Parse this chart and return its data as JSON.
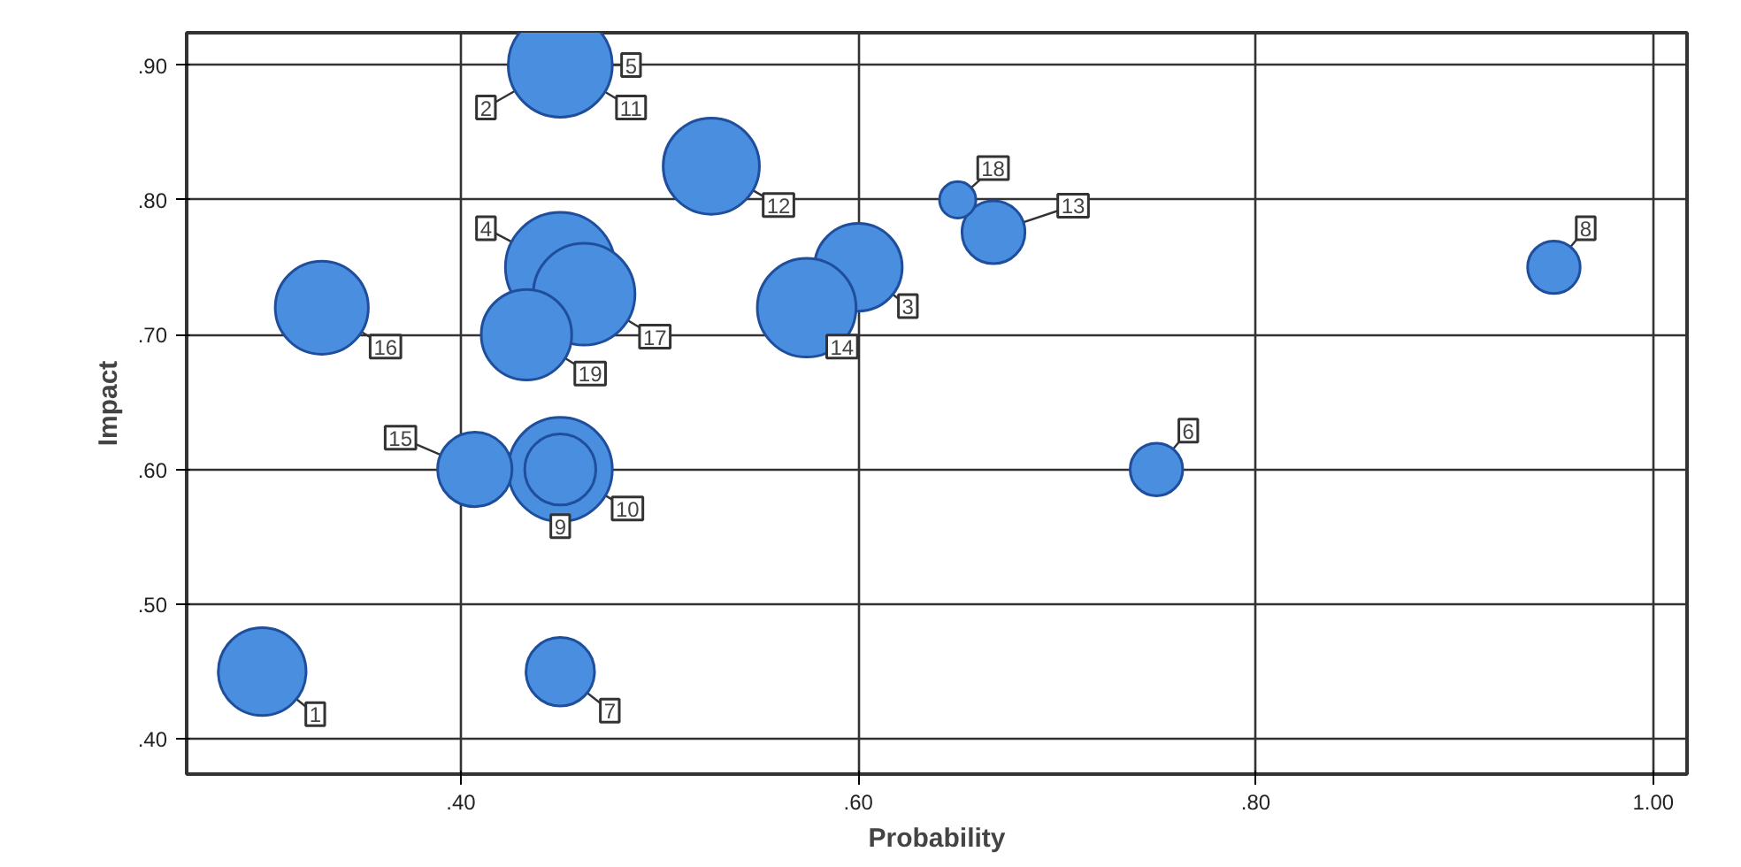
{
  "chart_data": {
    "type": "bubble",
    "xlabel": "Probability",
    "ylabel": "Impact",
    "xlim": [
      0.262,
      1.017
    ],
    "ylim": [
      0.374,
      0.924
    ],
    "xticks": [
      {
        "value": 0.4,
        "label": ".40"
      },
      {
        "value": 0.6,
        "label": ".60"
      },
      {
        "value": 0.8,
        "label": ".80"
      },
      {
        "value": 1.0,
        "label": "1.00"
      }
    ],
    "yticks": [
      {
        "value": 0.4,
        "label": ".40"
      },
      {
        "value": 0.5,
        "label": ".50"
      },
      {
        "value": 0.6,
        "label": ".60"
      },
      {
        "value": 0.7,
        "label": ".70"
      },
      {
        "value": 0.8,
        "label": ".80"
      },
      {
        "value": 0.9,
        "label": ".90"
      }
    ],
    "grid": true,
    "marker": "circle",
    "series": [
      {
        "color": "#4a8ee0",
        "x": [
          0.3,
          0.45,
          0.6,
          0.45,
          0.75,
          0.45,
          0.95,
          0.45,
          0.45,
          0.526,
          0.668,
          0.574,
          0.407,
          0.33,
          0.462,
          0.65,
          0.433
        ],
        "values": [
          0.45,
          0.9,
          0.75,
          0.75,
          0.6,
          0.45,
          0.75,
          0.6,
          0.6,
          0.825,
          0.776,
          0.72,
          0.6,
          0.72,
          0.73,
          0.8,
          0.7
        ],
        "sizes": [
          0.64,
          0.9,
          0.64,
          1,
          0.23,
          0.39,
          0.23,
          0.9,
          0.42,
          0.77,
          0.33,
          0.81,
          0.46,
          0.72,
          0.86,
          0.11,
          0.68
        ]
      }
    ],
    "annotations": [
      {
        "text": "1",
        "x": 0.3,
        "y": 0.45
      },
      {
        "text": "2",
        "x": 0.45,
        "y": 0.9
      },
      {
        "text": "3",
        "x": 0.6,
        "y": 0.75
      },
      {
        "text": "4",
        "x": 0.45,
        "y": 0.75
      },
      {
        "text": "5",
        "x": 0.45,
        "y": 0.9
      },
      {
        "text": "6",
        "x": 0.75,
        "y": 0.6
      },
      {
        "text": "7",
        "x": 0.45,
        "y": 0.45
      },
      {
        "text": "8",
        "x": 0.95,
        "y": 0.75
      },
      {
        "text": "9",
        "x": 0.45,
        "y": 0.6
      },
      {
        "text": "10",
        "x": 0.45,
        "y": 0.6
      },
      {
        "text": "11",
        "x": 0.45,
        "y": 0.9
      },
      {
        "text": "12",
        "x": 0.526,
        "y": 0.825
      },
      {
        "text": "13",
        "x": 0.668,
        "y": 0.776
      },
      {
        "text": "14",
        "x": 0.574,
        "y": 0.72
      },
      {
        "text": "15",
        "x": 0.407,
        "y": 0.6
      },
      {
        "text": "16",
        "x": 0.33,
        "y": 0.72
      },
      {
        "text": "17",
        "x": 0.462,
        "y": 0.73
      },
      {
        "text": "18",
        "x": 0.65,
        "y": 0.8
      },
      {
        "text": "19",
        "x": 0.433,
        "y": 0.7
      }
    ]
  }
}
